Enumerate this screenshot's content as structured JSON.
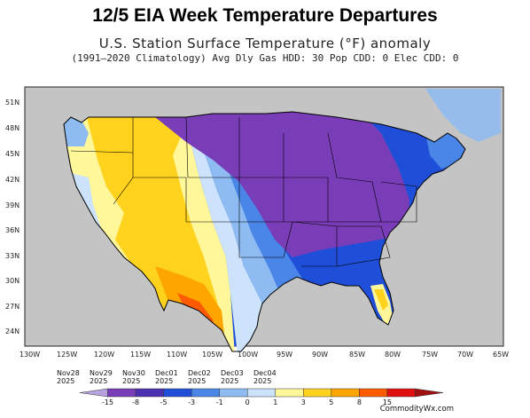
{
  "title": "12/5 EIA Week Temperature Departures",
  "subtitle": "U.S. Station Surface Temperature (°F) anomaly",
  "subtitle2": "(1991–2020 Climatology) Avg Dly Gas HDD: 30 Pop CDD: 0 Elec CDD: 0",
  "latitudes": [
    "51N",
    "48N",
    "45N",
    "42N",
    "39N",
    "36N",
    "33N",
    "30N",
    "27N",
    "24N"
  ],
  "longitudes": [
    "130W",
    "125W",
    "120W",
    "115W",
    "110W",
    "105W",
    "100W",
    "95W",
    "90W",
    "85W",
    "80W",
    "75W",
    "70W",
    "65W"
  ],
  "dates": [
    {
      "day": "Nov28",
      "year": "2025"
    },
    {
      "day": "Nov29",
      "year": "2025"
    },
    {
      "day": "Nov30",
      "year": "2025"
    },
    {
      "day": "Dec01",
      "year": "2025"
    },
    {
      "day": "Dec02",
      "year": "2025"
    },
    {
      "day": "Dec03",
      "year": "2025"
    },
    {
      "day": "Dec04",
      "year": "2025"
    }
  ],
  "legend": {
    "labels": [
      "-15",
      "-8",
      "-5",
      "-3",
      "-1",
      "0",
      "1",
      "3",
      "5",
      "8",
      "15"
    ],
    "colors": [
      "#b7a3e0",
      "#7a3db8",
      "#4a2fb0",
      "#1f4fd8",
      "#4a86e8",
      "#8dbbf2",
      "#cce3fb",
      "#fff79a",
      "#ffd21e",
      "#ffa500",
      "#ff5a00",
      "#e01010",
      "#a01010"
    ]
  },
  "credit": "CommodityWx.com"
}
